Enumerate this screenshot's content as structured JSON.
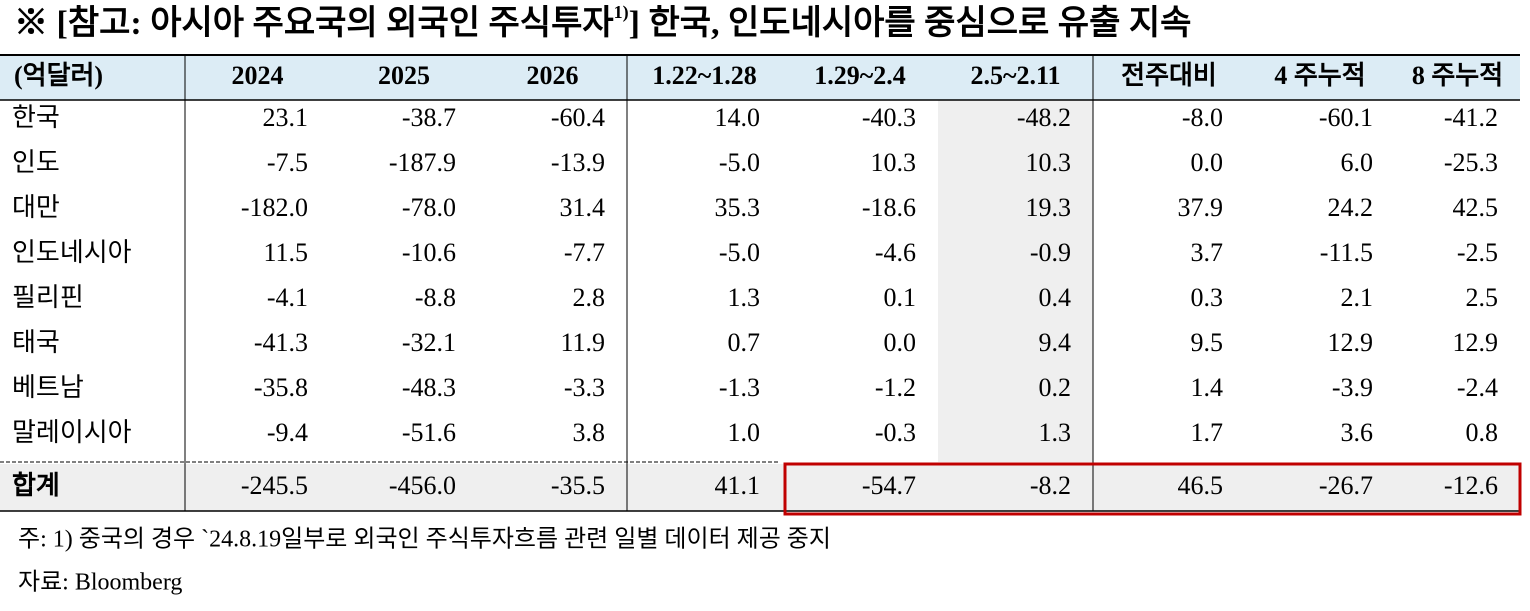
{
  "title": {
    "main": "※ [참고: 아시아 주요국의 외국인 주식투자",
    "sup": "1)",
    "tail": "] 한국, 인도네시아를 중심으로 유출 지속"
  },
  "table": {
    "header": [
      "(억달러)",
      "2024",
      "2025",
      "2026",
      "1.22~1.28",
      "1.29~2.4",
      "2.5~2.11",
      "전주대비",
      "4 주누적",
      "8 주누적"
    ],
    "rows": [
      [
        "한국",
        "23.1",
        "-38.7",
        "-60.4",
        "14.0",
        "-40.3",
        "-48.2",
        "-8.0",
        "-60.1",
        "-41.2"
      ],
      [
        "인도",
        "-7.5",
        "-187.9",
        "-13.9",
        "-5.0",
        "10.3",
        "10.3",
        "0.0",
        "6.0",
        "-25.3"
      ],
      [
        "대만",
        "-182.0",
        "-78.0",
        "31.4",
        "35.3",
        "-18.6",
        "19.3",
        "37.9",
        "24.2",
        "42.5"
      ],
      [
        "인도네시아",
        "11.5",
        "-10.6",
        "-7.7",
        "-5.0",
        "-4.6",
        "-0.9",
        "3.7",
        "-11.5",
        "-2.5"
      ],
      [
        "필리핀",
        "-4.1",
        "-8.8",
        "2.8",
        "1.3",
        "0.1",
        "0.4",
        "0.3",
        "2.1",
        "2.5"
      ],
      [
        "태국",
        "-41.3",
        "-32.1",
        "11.9",
        "0.7",
        "0.0",
        "9.4",
        "9.5",
        "12.9",
        "12.9"
      ],
      [
        "베트남",
        "-35.8",
        "-48.3",
        "-3.3",
        "-1.3",
        "-1.2",
        "0.2",
        "1.4",
        "-3.9",
        "-2.4"
      ],
      [
        "말레이시아",
        "-9.4",
        "-51.6",
        "3.8",
        "1.0",
        "-0.3",
        "1.3",
        "1.7",
        "3.6",
        "0.8"
      ]
    ],
    "total": [
      "합계",
      "-245.5",
      "-456.0",
      "-35.5",
      "41.1",
      "-54.7",
      "-8.2",
      "46.5",
      "-26.7",
      "-12.6"
    ]
  },
  "notes": [
    "주: 1) 중국의 경우 `24.8.19일부로 외국인 주식투자흐름 관련 일별 데이터 제공 중지",
    "자료: Bloomberg"
  ]
}
